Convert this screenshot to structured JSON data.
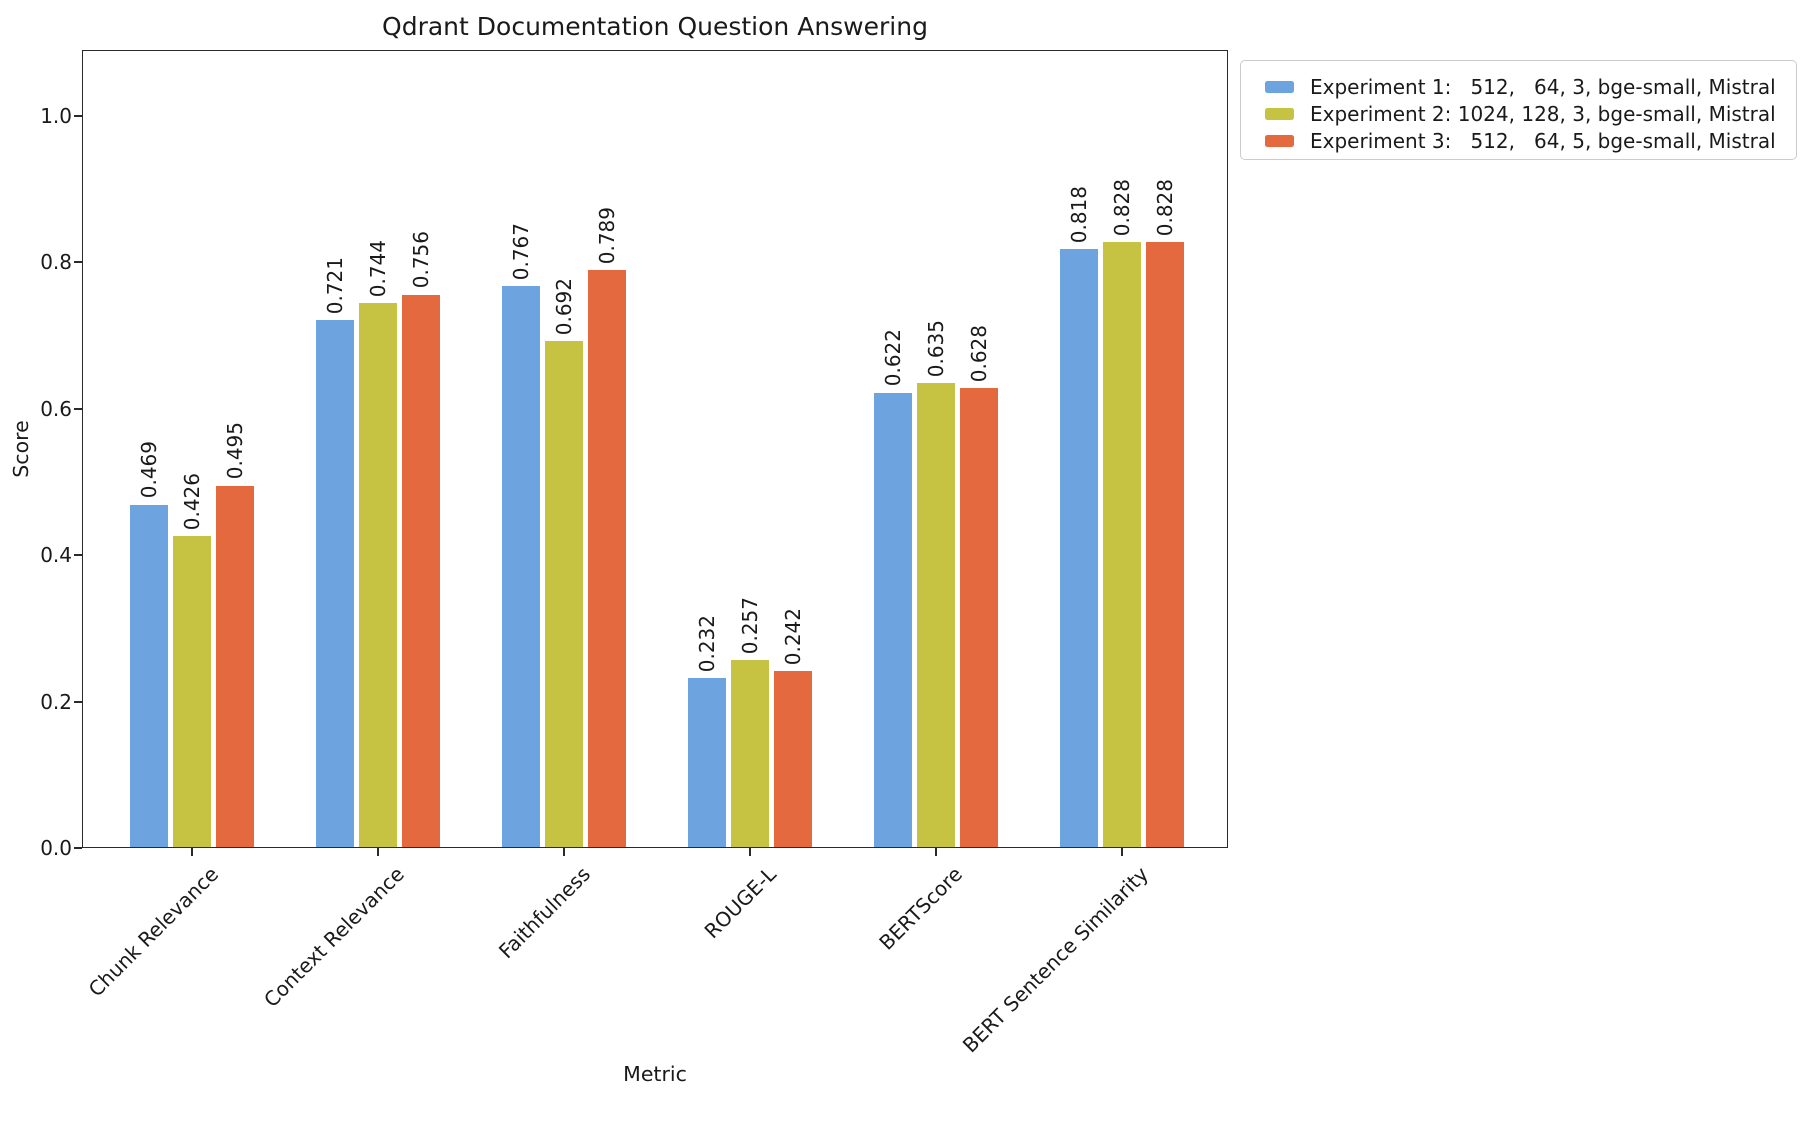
{
  "title": "Qdrant Documentation Question Answering",
  "chart_data": {
    "type": "bar",
    "title": "Qdrant Documentation Question Answering",
    "xlabel": "Metric",
    "ylabel": "Score",
    "ylim": [
      0.0,
      1.09
    ],
    "yticks": [
      0.0,
      0.2,
      0.4,
      0.6,
      0.8,
      1.0
    ],
    "grid": false,
    "bar_value_labels": true,
    "bar_value_label_rotation": 90,
    "xtick_rotation": 45,
    "legend_position": "upper right, outside axes",
    "categories": [
      "Chunk Relevance",
      "Context Relevance",
      "Faithfulness",
      "ROUGE-L",
      "BERTScore",
      "BERT Sentence Similarity"
    ],
    "series": [
      {
        "name": "Experiment 1:   512,   64, 3, bge-small, Mistral",
        "color": "#6DA3DF",
        "values": [
          0.469,
          0.721,
          0.767,
          0.232,
          0.622,
          0.818
        ]
      },
      {
        "name": "Experiment 2: 1024, 128, 3, bge-small, Mistral",
        "color": "#C6C342",
        "values": [
          0.426,
          0.744,
          0.692,
          0.257,
          0.635,
          0.828
        ]
      },
      {
        "name": "Experiment 3:   512,   64, 5, bge-small, Mistral",
        "color": "#E4693F",
        "values": [
          0.495,
          0.756,
          0.789,
          0.242,
          0.628,
          0.828
        ]
      }
    ]
  }
}
